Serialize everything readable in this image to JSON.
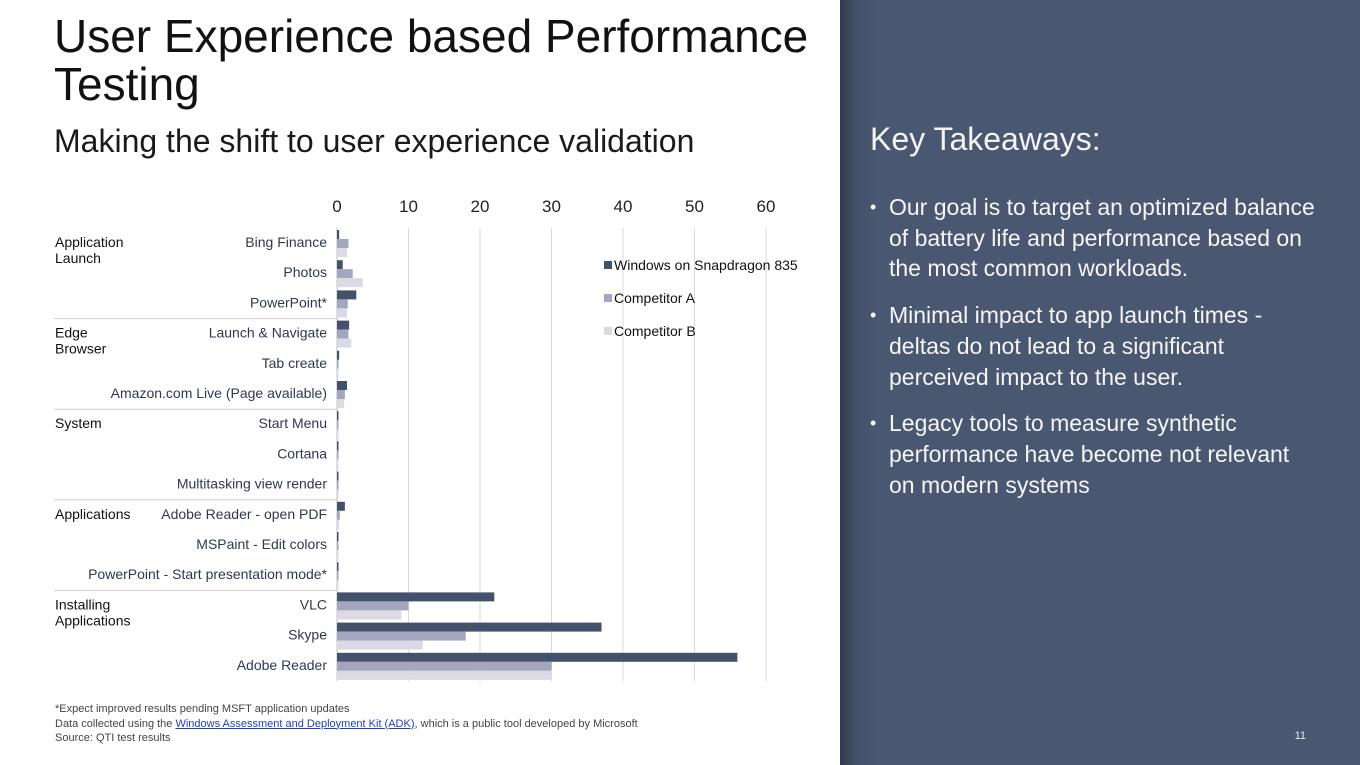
{
  "slide": {
    "title": "User Experience based Performance Testing",
    "subtitle": "Making the shift to user experience validation",
    "page_number": "11"
  },
  "footnotes": {
    "line1": "*Expect improved results pending MSFT application updates",
    "line2_prefix": "Data collected using the ",
    "line2_link": "Windows Assessment and Deployment Kit (ADK)",
    "line2_suffix": ", which is a public tool developed by Microsoft",
    "line3": "Source: QTI test results"
  },
  "takeaways": {
    "title": "Key Takeaways:",
    "bullet_glyph": "•",
    "items": [
      "Our goal is to target an optimized balance of battery life and performance based on the most common workloads.",
      "Minimal impact to app launch times - deltas do not lead to a significant perceived impact to the user.",
      "Legacy tools to measure synthetic performance have become not relevant on modern systems"
    ]
  },
  "colors": {
    "series_1": "#44516a",
    "series_2": "#a3a6bd",
    "series_3": "#d9dae4",
    "panel": "#4a5770",
    "gridline": "#d9d9d9"
  },
  "chart_data": {
    "type": "bar",
    "orientation": "horizontal",
    "xlim": [
      0,
      60
    ],
    "x_ticks": [
      0,
      10,
      20,
      30,
      40,
      50,
      60
    ],
    "x_axis_position": "top",
    "grid": true,
    "legend_position": "right",
    "groups": [
      {
        "label": "Application\nLaunch",
        "categories": [
          "Bing Finance",
          "Photos",
          "PowerPoint*"
        ]
      },
      {
        "label": "Edge\nBrowser",
        "categories": [
          "Launch & Navigate",
          "Tab create",
          "Amazon.com Live (Page available)"
        ]
      },
      {
        "label": "System",
        "categories": [
          "Start Menu",
          "Cortana",
          "Multitasking view render"
        ]
      },
      {
        "label": "Applications",
        "categories": [
          "Adobe Reader - open PDF",
          "MSPaint - Edit colors",
          "PowerPoint - Start presentation mode*"
        ]
      },
      {
        "label": "Installing\nApplications",
        "categories": [
          "VLC",
          "Skype",
          "Adobe Reader"
        ]
      }
    ],
    "categories": [
      "Bing Finance",
      "Photos",
      "PowerPoint*",
      "Launch & Navigate",
      "Tab create",
      "Amazon.com Live (Page available)",
      "Start Menu",
      "Cortana",
      "Multitasking view render",
      "Adobe Reader - open PDF",
      "MSPaint - Edit colors",
      "PowerPoint - Start presentation mode*",
      "VLC",
      "Skype",
      "Adobe Reader"
    ],
    "series": [
      {
        "name": "Windows on Snapdragon 835",
        "values": [
          0.3,
          0.8,
          2.7,
          1.7,
          0.3,
          1.4,
          0.1,
          0.1,
          0.1,
          1.1,
          0.2,
          0.2,
          22,
          37,
          56
        ]
      },
      {
        "name": "Competitor A",
        "values": [
          1.6,
          2.2,
          1.5,
          1.6,
          0.2,
          1.1,
          0.1,
          0.1,
          0.1,
          0.4,
          0.2,
          0.1,
          10,
          18,
          30
        ]
      },
      {
        "name": "Competitor B",
        "values": [
          1.4,
          3.6,
          1.4,
          2.0,
          0.2,
          1.0,
          0.1,
          0.2,
          0.1,
          0.3,
          0.1,
          0.1,
          9,
          12,
          30
        ]
      }
    ]
  }
}
